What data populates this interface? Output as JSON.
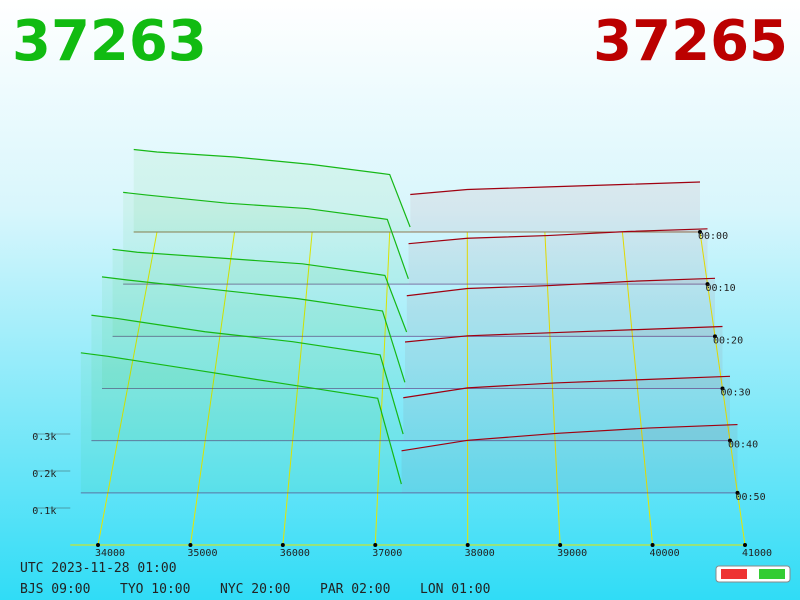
{
  "chart_data": {
    "type": "depth3d",
    "bid_price": 37263,
    "ask_price": 37265,
    "xlim": [
      33700,
      41000
    ],
    "xticks": [
      34000,
      35000,
      36000,
      37000,
      38000,
      39000,
      40000,
      41000
    ],
    "tlim": [
      0,
      60
    ],
    "time_ticks": [
      {
        "value": 0,
        "label": "00:00"
      },
      {
        "value": 10,
        "label": "00:10"
      },
      {
        "value": 20,
        "label": "00:20"
      },
      {
        "value": 30,
        "label": "00:30"
      },
      {
        "value": 40,
        "label": "00:40"
      },
      {
        "value": 50,
        "label": "00:50"
      }
    ],
    "zticks": [
      {
        "value": 100,
        "label": "0.1k"
      },
      {
        "value": 200,
        "label": "0.2k"
      },
      {
        "value": 300,
        "label": "0.3k"
      }
    ],
    "utc": "UTC 2023-11-28 01:00",
    "zones": [
      "BJS 09:00",
      "TYO 10:00",
      "NYC 20:00",
      "PAR 02:00",
      "LON 01:00"
    ],
    "snapshot_times": [
      0,
      10,
      20,
      30,
      40,
      50
    ],
    "bids": {
      "color": "#16b816",
      "prices": [
        33700,
        34000,
        35000,
        36000,
        37000,
        37263
      ],
      "values": [
        [
          330,
          320,
          300,
          270,
          230,
          20
        ],
        [
          340,
          330,
          300,
          280,
          240,
          20
        ],
        [
          300,
          290,
          270,
          250,
          210,
          15
        ],
        [
          360,
          350,
          320,
          290,
          250,
          20
        ],
        [
          380,
          370,
          330,
          300,
          260,
          20
        ],
        [
          400,
          390,
          350,
          310,
          270,
          25
        ]
      ]
    },
    "asks": {
      "color": "#a00010",
      "prices": [
        37265,
        38000,
        39000,
        40000,
        41000
      ],
      "values": [
        [
          150,
          170,
          180,
          190,
          200
        ],
        [
          150,
          170,
          180,
          195,
          205
        ],
        [
          140,
          165,
          175,
          190,
          200
        ],
        [
          150,
          170,
          180,
          190,
          200
        ],
        [
          130,
          160,
          175,
          185,
          195
        ],
        [
          120,
          150,
          170,
          185,
          195
        ]
      ]
    }
  }
}
